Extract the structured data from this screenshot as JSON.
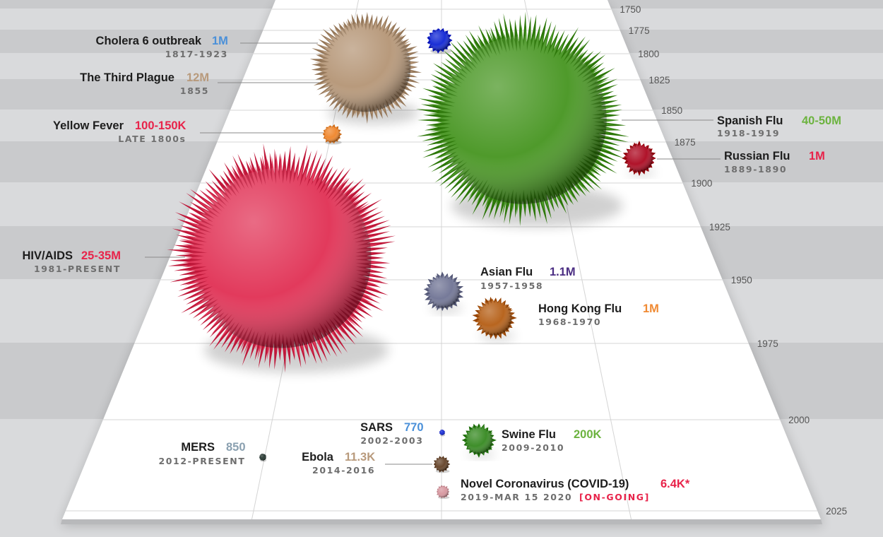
{
  "chart_data": {
    "type": "scatter",
    "y_axis": {
      "min": 1750,
      "max": 2025,
      "ticks": [
        1750,
        1775,
        1800,
        1825,
        1850,
        1875,
        1900,
        1925,
        1950,
        1975,
        2000,
        2025
      ]
    },
    "series": [
      {
        "name": "Cholera 6 outbreak",
        "dates": "1817-1923",
        "year": 1817,
        "deaths_label": "1M",
        "deaths": 1000000,
        "color": "#1a2fd6",
        "value_color": "#4a90d9"
      },
      {
        "name": "The Third Plague",
        "dates": "1855",
        "year": 1855,
        "deaths_label": "12M",
        "deaths": 12000000,
        "color": "#b89a7c",
        "value_color": "#b89a7c"
      },
      {
        "name": "Yellow Fever",
        "dates": "LATE 1800s",
        "year": 1880,
        "deaths_label": "100-150K",
        "deaths": 125000,
        "color": "#f08a33",
        "value_color": "#e8234a"
      },
      {
        "name": "Spanish Flu",
        "dates": "1918-1919",
        "year": 1918,
        "deaths_label": "40-50M",
        "deaths": 45000000,
        "color": "#4f9a2b",
        "value_color": "#6cb33f"
      },
      {
        "name": "Russian Flu",
        "dates": "1889-1890",
        "year": 1889,
        "deaths_label": "1M",
        "deaths": 1000000,
        "color": "#b0132a",
        "value_color": "#e8234a"
      },
      {
        "name": "HIV/AIDS",
        "dates": "1981-PRESENT",
        "year": 1981,
        "deaths_label": "25-35M",
        "deaths": 30000000,
        "color": "#e23a5c",
        "value_color": "#e8234a"
      },
      {
        "name": "Asian Flu",
        "dates": "1957-1958",
        "year": 1957,
        "deaths_label": "1.1M",
        "deaths": 1100000,
        "color": "#767a99",
        "value_color": "#4b2e83"
      },
      {
        "name": "Hong Kong Flu",
        "dates": "1968-1970",
        "year": 1968,
        "deaths_label": "1M",
        "deaths": 1000000,
        "color": "#b8651f",
        "value_color": "#f08a33"
      },
      {
        "name": "SARS",
        "dates": "2002-2003",
        "year": 2002,
        "deaths_label": "770",
        "deaths": 770,
        "color": "#1a2fd6",
        "value_color": "#4a90d9"
      },
      {
        "name": "Swine Flu",
        "dates": "2009-2010",
        "year": 2009,
        "deaths_label": "200K",
        "deaths": 200000,
        "color": "#3e8e2a",
        "value_color": "#6cb33f"
      },
      {
        "name": "MERS",
        "dates": "2012-PRESENT",
        "year": 2012,
        "deaths_label": "850",
        "deaths": 850,
        "color": "#2c3c36",
        "value_color": "#8aa0b0"
      },
      {
        "name": "Ebola",
        "dates": "2014-2016",
        "year": 2014,
        "deaths_label": "11.3K",
        "deaths": 11300,
        "color": "#6b4a30",
        "value_color": "#b89a7c"
      },
      {
        "name": "Novel Coronavirus (COVID-19)",
        "dates": "2019-MAR 15 2020",
        "status": "[ON-GOING]",
        "year": 2019,
        "deaths_label": "6.4K*",
        "deaths": 6400,
        "color": "#d89aa2",
        "value_color": "#e8234a"
      }
    ]
  }
}
